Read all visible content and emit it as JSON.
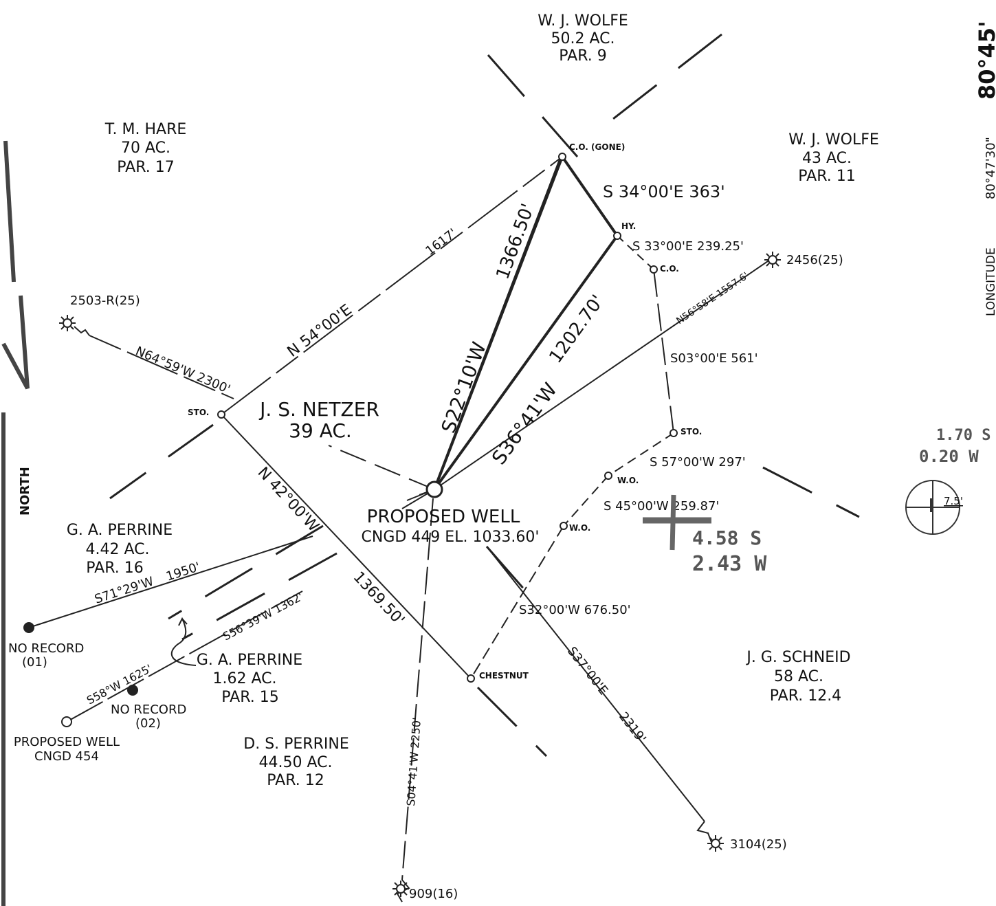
{
  "owners": {
    "wolfe9": [
      "W. J. WOLFE",
      "50.2 AC.",
      "PAR. 9"
    ],
    "hare": [
      "T. M. HARE",
      "70 AC.",
      "PAR. 17"
    ],
    "wolfe11": [
      "W. J. WOLFE",
      "43 AC.",
      "PAR. 11"
    ],
    "netzer": [
      "J. S. NETZER",
      "39 AC."
    ],
    "perrine16": [
      "G. A. PERRINE",
      "4.42 AC.",
      "PAR. 16"
    ],
    "perrine15": [
      "G. A. PERRINE",
      "1.62 AC.",
      "PAR. 15"
    ],
    "dsperrine": [
      "D. S. PERRINE",
      "44.50 AC.",
      "PAR. 12"
    ],
    "schneid": [
      "J. G. SCHNEID",
      "58 AC.",
      "PAR. 12.4"
    ]
  },
  "well": {
    "title": "PROPOSED WELL",
    "info": "CNGD 449 EL. 1033.60'",
    "second": [
      "PROPOSED WELL",
      "CNGD 454"
    ]
  },
  "corners": {
    "co_gone": "C.O. (GONE)",
    "hy": "HY.",
    "co": "C.O.",
    "sto_left": "STO.",
    "sto_right": "STO.",
    "wo1": "W.O.",
    "wo2": "W.O.",
    "chestnut": "CHESTNUT"
  },
  "bearings": {
    "b1": "S 34°00'E 363'",
    "b2": "S 33°00'E 239.25'",
    "b3": "S03°00'E 561'",
    "b4": "S 57°00'W 297'",
    "b5": "S 45°00'W 259.87'",
    "b6": "S32°00'W 676.50'",
    "b7": "N 54°00'E",
    "b8": "1617'",
    "b9": "1366.50'",
    "b10": "S22°10'W",
    "b11": "S36°41'W",
    "b12": "1202.70'",
    "b13": "N 42°00'W",
    "b14": "1369.50'",
    "b15": "N64°59'W 2300'",
    "b16": "N56°58'E 1557.6'",
    "b17": "S71°29'W",
    "b18": "1950'",
    "b19": "S56°39'W 1362'",
    "b20": "S58°W 1625'",
    "b21": "S04°41'W 2250'",
    "b22": "S37°00'E",
    "b23": "2319'"
  },
  "reference_wells": {
    "w2503": "2503-R(25)",
    "w2456": "2456(25)",
    "w3104": "3104(25)",
    "w909": "909(16)",
    "nr1": [
      "NO RECORD",
      "(01)"
    ],
    "nr2": [
      "NO RECORD",
      "(02)"
    ]
  },
  "margin": {
    "longitude_label": "LONGITUDE",
    "longitude_value": "80°47'30\"",
    "longitude_big": "80°45'",
    "north": "NORTH"
  },
  "notes": {
    "offset_s": "4.58 S",
    "offset_w": "2.43 W",
    "right_s": "1.70 S",
    "right_w": "0.20 W",
    "scale": "7.5'"
  }
}
